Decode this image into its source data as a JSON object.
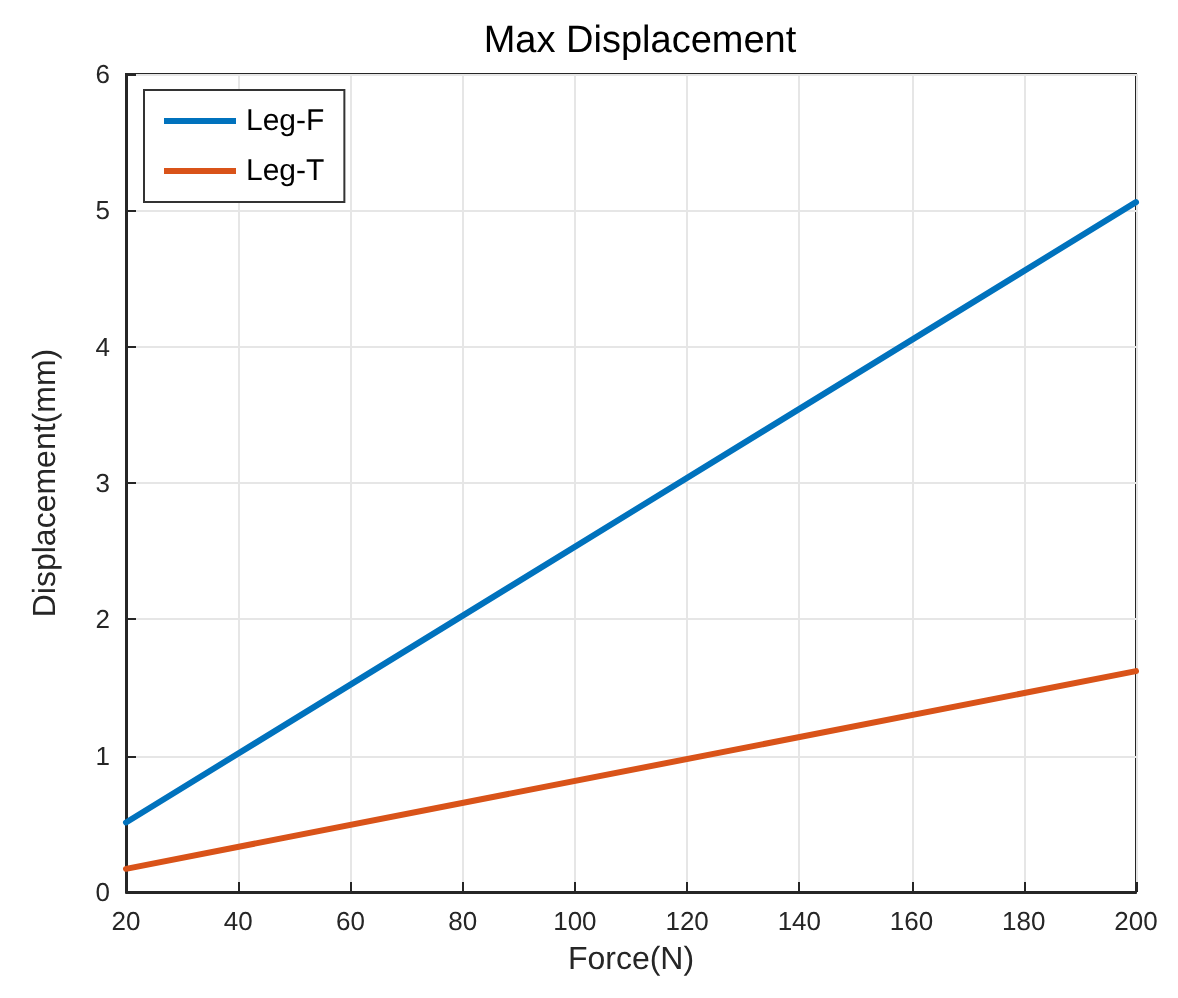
{
  "chart_data": {
    "type": "line",
    "title": "Max Displacement",
    "xlabel": "Force(N)",
    "ylabel": "Displacement(mm)",
    "x": [
      20,
      200
    ],
    "series": [
      {
        "name": "Leg-F",
        "color": "#0072bd",
        "values": [
          0.51,
          5.06
        ]
      },
      {
        "name": "Leg-T",
        "color": "#d95319",
        "values": [
          0.17,
          1.62
        ]
      }
    ],
    "xlim": [
      20,
      200
    ],
    "xticks": [
      20,
      40,
      60,
      80,
      100,
      120,
      140,
      160,
      180,
      200
    ],
    "ylim": [
      0,
      6
    ],
    "yticks": [
      0,
      1,
      2,
      3,
      4,
      5,
      6
    ],
    "grid": true,
    "legend": "top left",
    "marker": "none",
    "line_style": "solid"
  }
}
